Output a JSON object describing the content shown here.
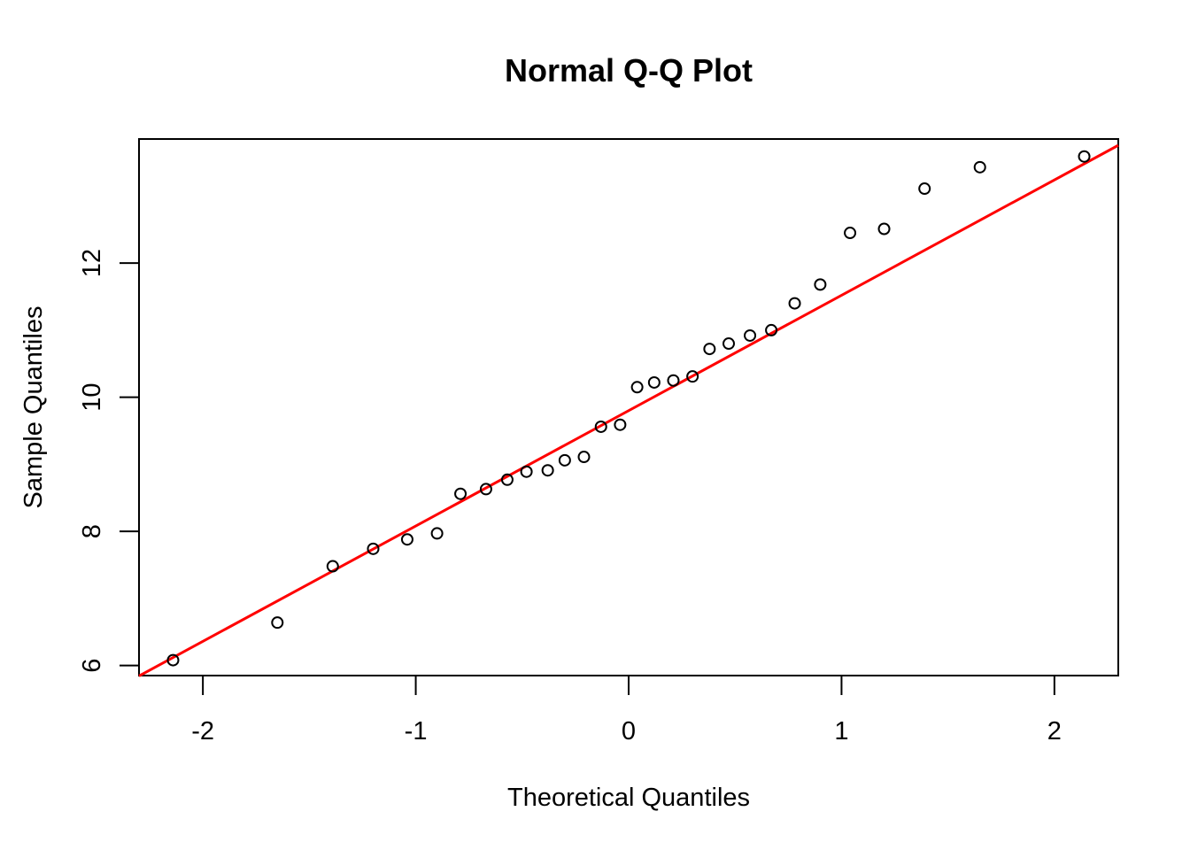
{
  "chart_data": {
    "type": "scatter",
    "title": "Normal Q-Q Plot",
    "xlabel": "Theoretical Quantiles",
    "ylabel": "Sample Quantiles",
    "xlim": [
      -2.3,
      2.3
    ],
    "ylim": [
      5.85,
      13.85
    ],
    "x_ticks": [
      -2,
      -1,
      0,
      1,
      2
    ],
    "x_tick_labels": [
      "-2",
      "-1",
      "0",
      "1",
      "2"
    ],
    "y_ticks": [
      6,
      8,
      10,
      12
    ],
    "y_tick_labels": [
      "6",
      "8",
      "10",
      "12"
    ],
    "grid": false,
    "legend": "none",
    "series": [
      {
        "marker": "open-circle",
        "color": "#000000",
        "x": [
          -2.14,
          -1.65,
          -1.39,
          -1.2,
          -1.04,
          -0.9,
          -0.79,
          -0.67,
          -0.57,
          -0.48,
          -0.38,
          -0.3,
          -0.21,
          -0.13,
          -0.04,
          0.04,
          0.12,
          0.21,
          0.3,
          0.38,
          0.47,
          0.57,
          0.67,
          0.78,
          0.9,
          1.04,
          1.2,
          1.39,
          1.65,
          2.14
        ],
        "y": [
          6.08,
          6.64,
          7.48,
          7.74,
          7.88,
          7.97,
          8.56,
          8.63,
          8.77,
          8.89,
          8.91,
          9.06,
          9.11,
          9.56,
          9.59,
          10.15,
          10.22,
          10.25,
          10.31,
          10.72,
          10.8,
          10.92,
          11.0,
          11.4,
          11.68,
          12.45,
          12.51,
          13.11,
          13.43,
          13.59
        ]
      }
    ],
    "reference_line": {
      "color": "#ff0000",
      "intercept": 9.8,
      "slope": 1.72
    }
  }
}
